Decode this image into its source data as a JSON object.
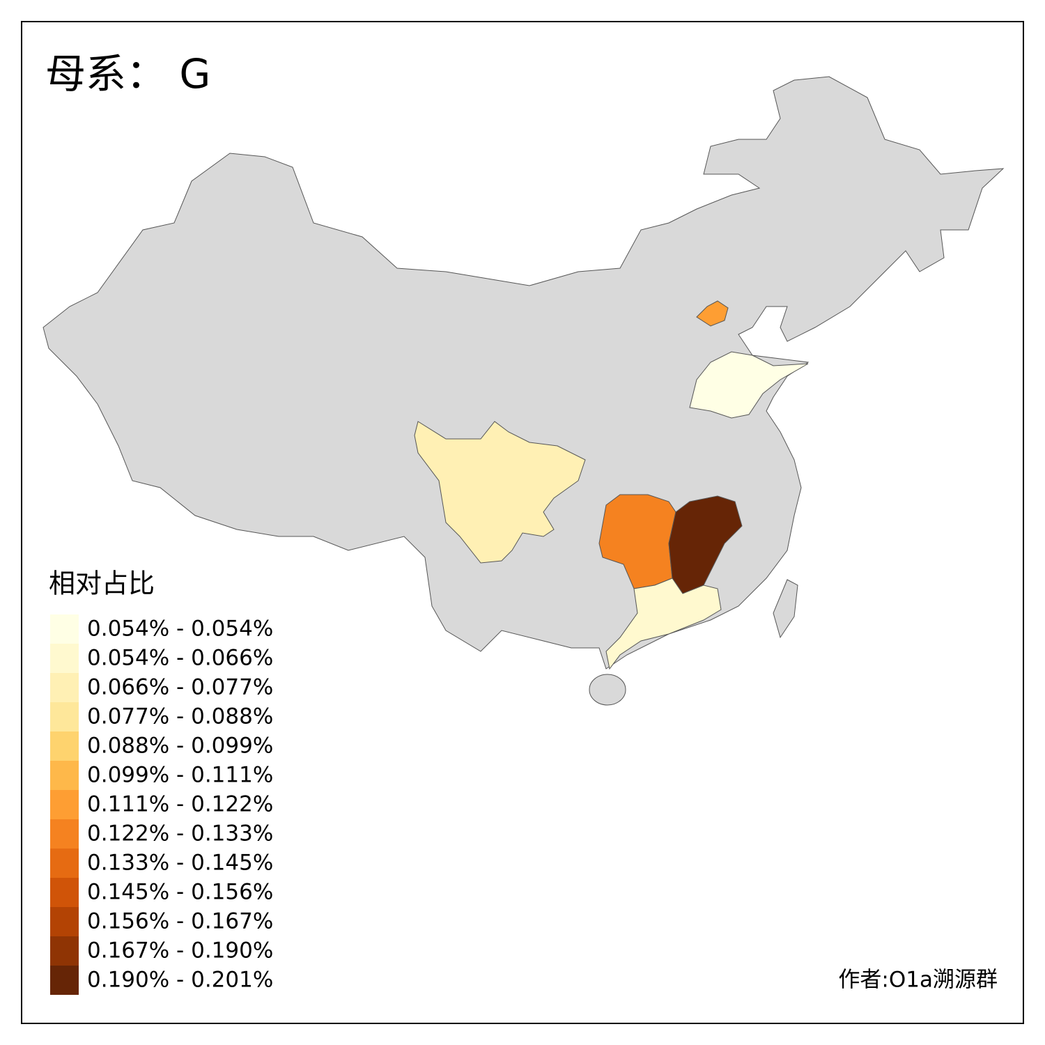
{
  "title": "母系： G",
  "legend": {
    "title": "相对占比",
    "items": [
      {
        "label": "0.054% - 0.054%",
        "color": "#ffffe5"
      },
      {
        "label": "0.054% - 0.066%",
        "color": "#fff9cf"
      },
      {
        "label": "0.066% - 0.077%",
        "color": "#fff0b4"
      },
      {
        "label": "0.077% - 0.088%",
        "color": "#fee79a"
      },
      {
        "label": "0.088% - 0.099%",
        "color": "#fed36e"
      },
      {
        "label": "0.099% - 0.111%",
        "color": "#feb84a"
      },
      {
        "label": "0.111% - 0.122%",
        "color": "#fe9e33"
      },
      {
        "label": "0.122% - 0.133%",
        "color": "#f58220"
      },
      {
        "label": "0.133% - 0.145%",
        "color": "#e66b12"
      },
      {
        "label": "0.145% - 0.156%",
        "color": "#d05408"
      },
      {
        "label": "0.156% - 0.167%",
        "color": "#b34304"
      },
      {
        "label": "0.167% - 0.190%",
        "color": "#8f3404"
      },
      {
        "label": "0.190% - 0.201%",
        "color": "#662506"
      }
    ]
  },
  "regions": [
    {
      "color": "#fe9e33"
    },
    {
      "color": "#ffffe5"
    },
    {
      "color": "#fff0b4"
    },
    {
      "color": "#f58220"
    },
    {
      "color": "#662506"
    },
    {
      "color": "#fff9cf"
    }
  ],
  "author": "作者:O1a溯源群"
}
